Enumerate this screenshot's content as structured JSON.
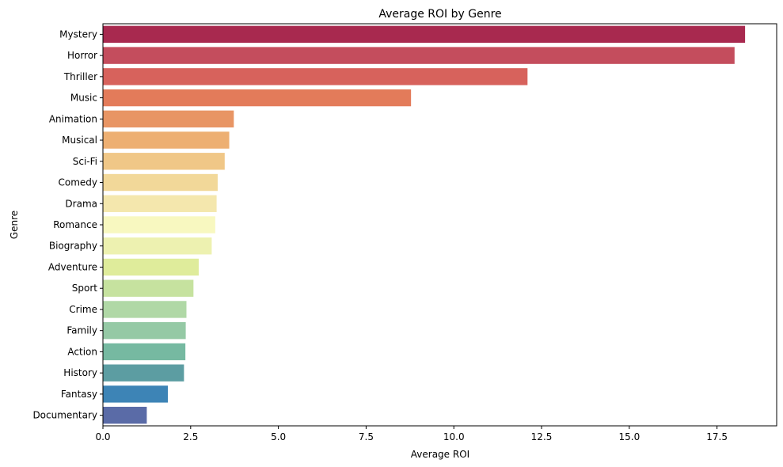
{
  "chart_data": {
    "type": "bar",
    "orientation": "horizontal",
    "title": "Average ROI by Genre",
    "xlabel": "Average ROI",
    "ylabel": "Genre",
    "xlim": [
      0,
      19.2
    ],
    "xticks": [
      "0.0",
      "2.5",
      "5.0",
      "7.5",
      "10.0",
      "12.5",
      "15.0",
      "17.5"
    ],
    "grid": false,
    "categories": [
      "Mystery",
      "Horror",
      "Thriller",
      "Music",
      "Animation",
      "Musical",
      "Sci-Fi",
      "Comedy",
      "Drama",
      "Romance",
      "Biography",
      "Adventure",
      "Sport",
      "Crime",
      "Family",
      "Action",
      "History",
      "Fantasy",
      "Documentary"
    ],
    "values": [
      18.3,
      18.0,
      12.1,
      8.78,
      3.73,
      3.6,
      3.47,
      3.27,
      3.24,
      3.2,
      3.1,
      2.73,
      2.58,
      2.38,
      2.36,
      2.35,
      2.31,
      1.85,
      1.25
    ],
    "colors": [
      "#a8294f",
      "#c44d5d",
      "#d7625c",
      "#e37b5a",
      "#e89564",
      "#edaf72",
      "#f0c787",
      "#f2d899",
      "#f4e7ad",
      "#f8f8c0",
      "#edf1b0",
      "#dfec9b",
      "#c6e29f",
      "#b0d8a6",
      "#95c9a5",
      "#76b9a1",
      "#5c9da2",
      "#3d84b6",
      "#5a6ba7"
    ]
  }
}
